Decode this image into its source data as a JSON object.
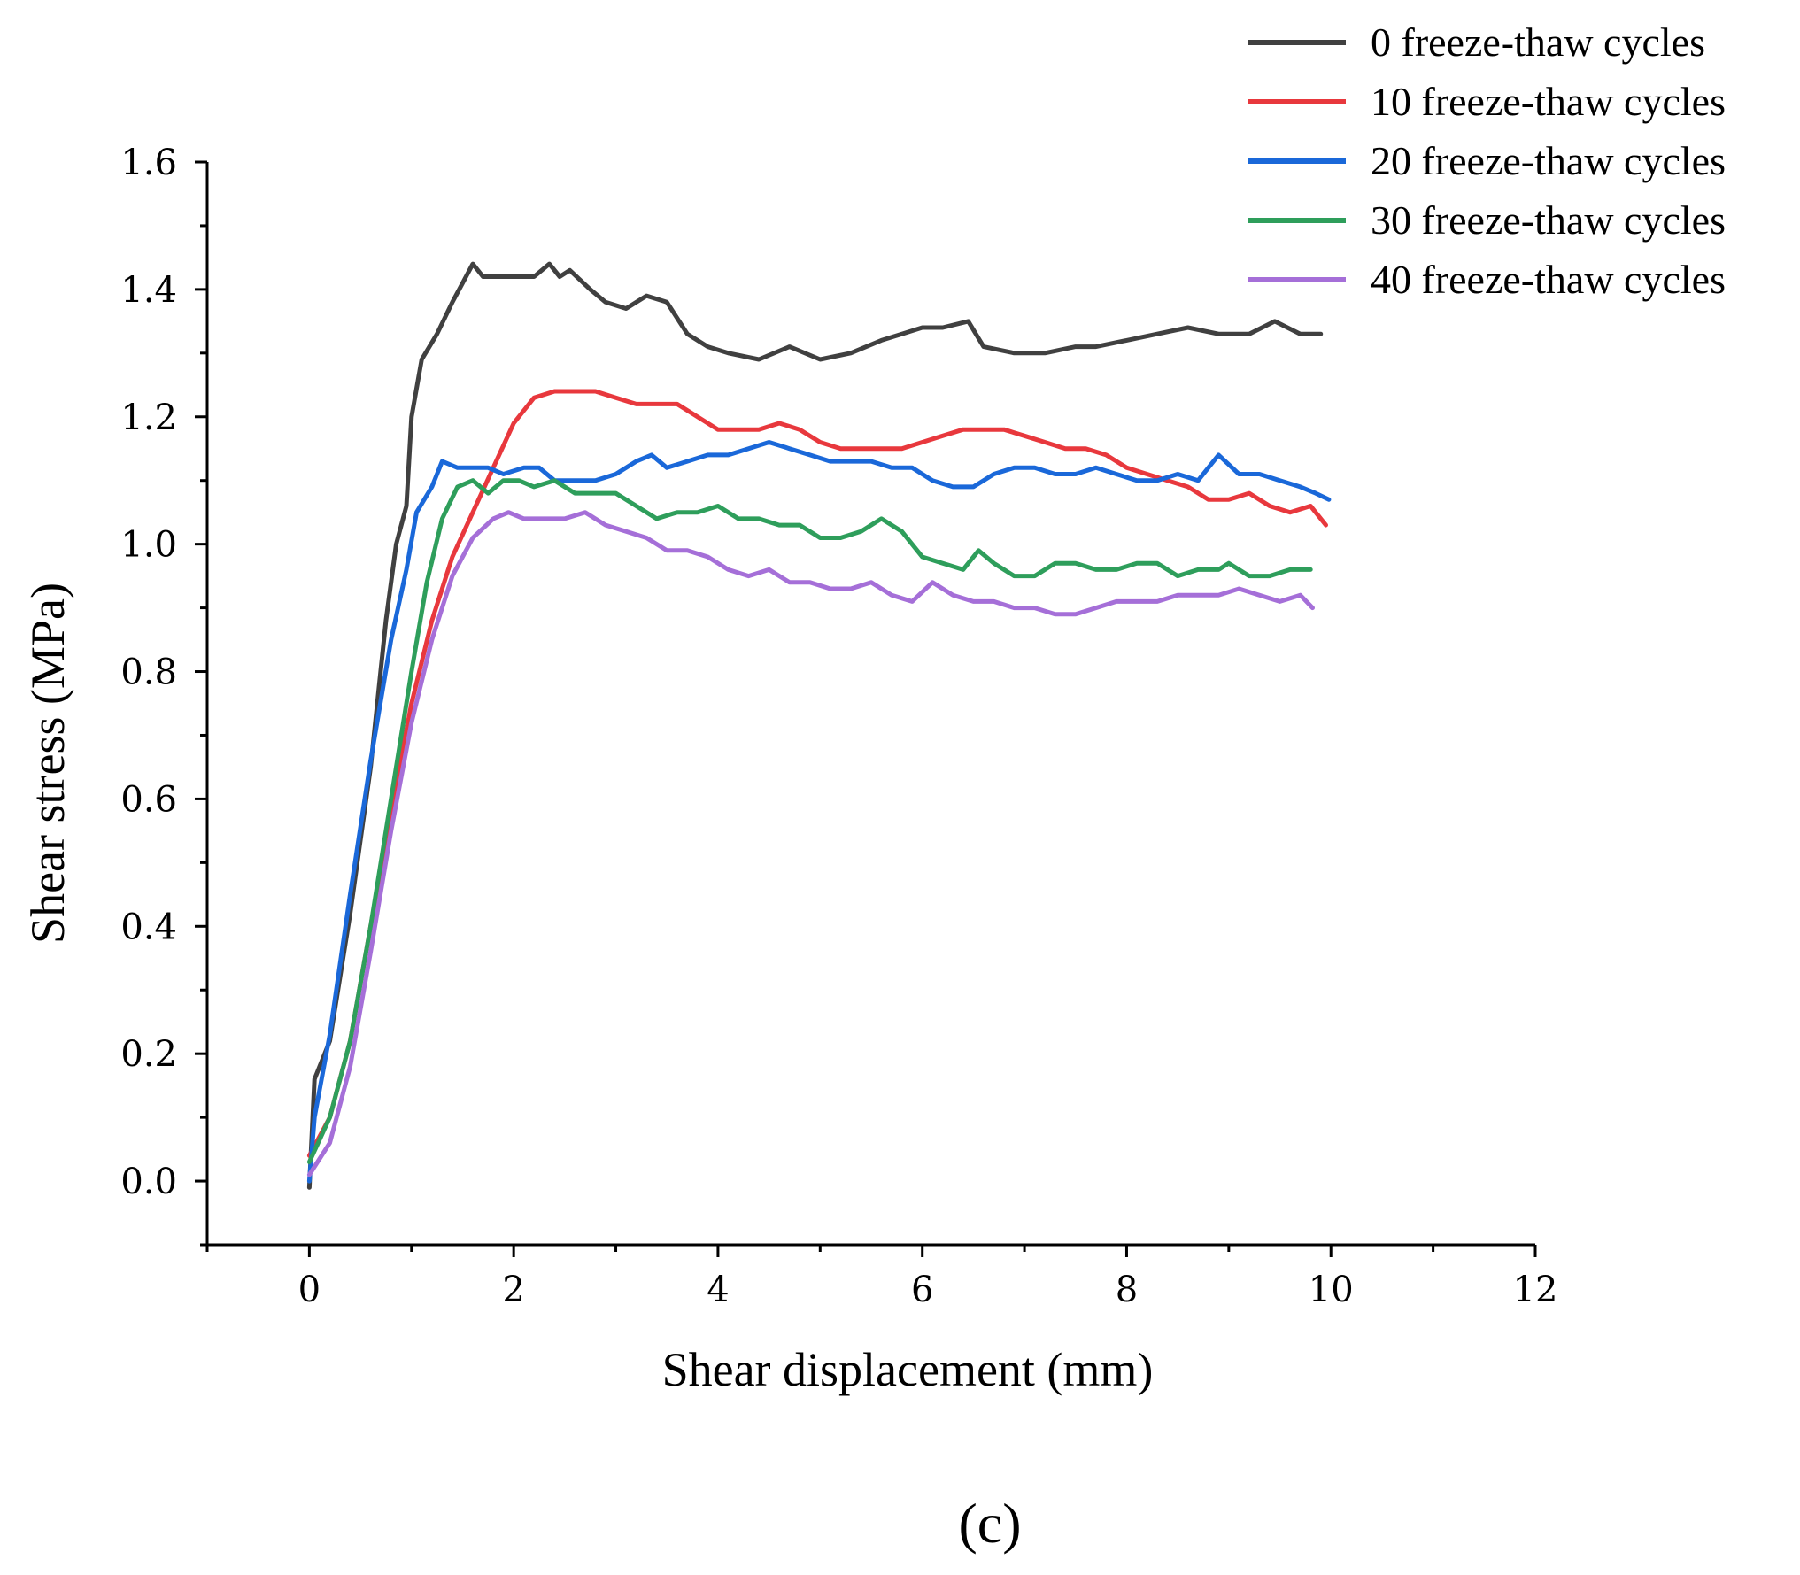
{
  "chart_data": {
    "type": "line",
    "title": "",
    "xlabel": "Shear displacement (mm)",
    "ylabel": "Shear stress (MPa)",
    "xlim": [
      -1,
      12
    ],
    "ylim": [
      -0.1,
      1.6
    ],
    "xticks": [
      0,
      2,
      4,
      6,
      8,
      10,
      12
    ],
    "xtick_labels": [
      "0",
      "2",
      "4",
      "6",
      "8",
      "10",
      "12"
    ],
    "yticks": [
      0.0,
      0.2,
      0.4,
      0.6,
      0.8,
      1.0,
      1.2,
      1.4,
      1.6
    ],
    "ytick_labels": [
      "0.0",
      "0.2",
      "0.4",
      "0.6",
      "0.8",
      "1.0",
      "1.2",
      "1.4",
      "1.6"
    ],
    "grid": false,
    "legend_position": "top-right",
    "panel_label": "(c)",
    "series": [
      {
        "name": "0 freeze-thaw cycles",
        "color": "#404040",
        "x": [
          0,
          0.05,
          0.2,
          0.4,
          0.6,
          0.75,
          0.85,
          0.95,
          1.0,
          1.1,
          1.25,
          1.4,
          1.5,
          1.6,
          1.7,
          1.85,
          2.0,
          2.2,
          2.35,
          2.45,
          2.55,
          2.75,
          2.9,
          3.1,
          3.3,
          3.5,
          3.7,
          3.9,
          4.1,
          4.4,
          4.7,
          5.0,
          5.3,
          5.6,
          5.8,
          6.0,
          6.2,
          6.45,
          6.6,
          6.9,
          7.2,
          7.5,
          7.7,
          8.0,
          8.3,
          8.6,
          8.9,
          9.2,
          9.45,
          9.7,
          9.9
        ],
        "values": [
          -0.01,
          0.16,
          0.22,
          0.42,
          0.65,
          0.88,
          1.0,
          1.06,
          1.2,
          1.29,
          1.33,
          1.38,
          1.41,
          1.44,
          1.42,
          1.42,
          1.42,
          1.42,
          1.44,
          1.42,
          1.43,
          1.4,
          1.38,
          1.37,
          1.39,
          1.38,
          1.33,
          1.31,
          1.3,
          1.29,
          1.31,
          1.29,
          1.3,
          1.32,
          1.33,
          1.34,
          1.34,
          1.35,
          1.31,
          1.3,
          1.3,
          1.31,
          1.31,
          1.32,
          1.33,
          1.34,
          1.33,
          1.33,
          1.35,
          1.33,
          1.33
        ]
      },
      {
        "name": "10 freeze-thaw cycles",
        "color": "#e8383d",
        "x": [
          0,
          0.2,
          0.4,
          0.6,
          0.8,
          1.0,
          1.2,
          1.4,
          1.6,
          1.8,
          2.0,
          2.2,
          2.4,
          2.6,
          2.8,
          3.0,
          3.2,
          3.4,
          3.6,
          3.8,
          4.0,
          4.2,
          4.4,
          4.6,
          4.8,
          5.0,
          5.2,
          5.4,
          5.6,
          5.8,
          6.0,
          6.2,
          6.4,
          6.6,
          6.8,
          7.0,
          7.2,
          7.4,
          7.6,
          7.8,
          8.0,
          8.2,
          8.4,
          8.6,
          8.8,
          9.0,
          9.2,
          9.4,
          9.6,
          9.8,
          9.95
        ],
        "values": [
          0.04,
          0.1,
          0.22,
          0.4,
          0.58,
          0.75,
          0.88,
          0.98,
          1.05,
          1.12,
          1.19,
          1.23,
          1.24,
          1.24,
          1.24,
          1.23,
          1.22,
          1.22,
          1.22,
          1.2,
          1.18,
          1.18,
          1.18,
          1.19,
          1.18,
          1.16,
          1.15,
          1.15,
          1.15,
          1.15,
          1.16,
          1.17,
          1.18,
          1.18,
          1.18,
          1.17,
          1.16,
          1.15,
          1.15,
          1.14,
          1.12,
          1.11,
          1.1,
          1.09,
          1.07,
          1.07,
          1.08,
          1.06,
          1.05,
          1.06,
          1.03
        ]
      },
      {
        "name": "20 freeze-thaw cycles",
        "color": "#1a68d9",
        "x": [
          0,
          0.05,
          0.2,
          0.4,
          0.6,
          0.8,
          0.95,
          1.05,
          1.2,
          1.3,
          1.45,
          1.6,
          1.75,
          1.9,
          2.1,
          2.25,
          2.4,
          2.6,
          2.8,
          3.0,
          3.2,
          3.35,
          3.5,
          3.7,
          3.9,
          4.1,
          4.3,
          4.5,
          4.7,
          4.9,
          5.1,
          5.3,
          5.5,
          5.7,
          5.9,
          6.1,
          6.3,
          6.5,
          6.7,
          6.9,
          7.1,
          7.3,
          7.5,
          7.7,
          7.9,
          8.1,
          8.3,
          8.5,
          8.7,
          8.9,
          9.1,
          9.3,
          9.5,
          9.7,
          9.85,
          9.98
        ],
        "values": [
          0.0,
          0.1,
          0.23,
          0.45,
          0.66,
          0.85,
          0.96,
          1.05,
          1.09,
          1.13,
          1.12,
          1.12,
          1.12,
          1.11,
          1.12,
          1.12,
          1.1,
          1.1,
          1.1,
          1.11,
          1.13,
          1.14,
          1.12,
          1.13,
          1.14,
          1.14,
          1.15,
          1.16,
          1.15,
          1.14,
          1.13,
          1.13,
          1.13,
          1.12,
          1.12,
          1.1,
          1.09,
          1.09,
          1.11,
          1.12,
          1.12,
          1.11,
          1.11,
          1.12,
          1.11,
          1.1,
          1.1,
          1.11,
          1.1,
          1.14,
          1.11,
          1.11,
          1.1,
          1.09,
          1.08,
          1.07
        ]
      },
      {
        "name": "30 freeze-thaw cycles",
        "color": "#2e9e5b",
        "x": [
          0,
          0.2,
          0.4,
          0.6,
          0.8,
          1.0,
          1.15,
          1.3,
          1.45,
          1.6,
          1.75,
          1.9,
          2.05,
          2.2,
          2.4,
          2.6,
          2.8,
          3.0,
          3.2,
          3.4,
          3.6,
          3.8,
          4.0,
          4.2,
          4.4,
          4.6,
          4.8,
          5.0,
          5.2,
          5.4,
          5.6,
          5.8,
          6.0,
          6.2,
          6.4,
          6.55,
          6.7,
          6.9,
          7.1,
          7.3,
          7.5,
          7.7,
          7.9,
          8.1,
          8.3,
          8.5,
          8.7,
          8.9,
          9.0,
          9.2,
          9.4,
          9.6,
          9.8
        ],
        "values": [
          0.03,
          0.1,
          0.22,
          0.4,
          0.6,
          0.8,
          0.94,
          1.04,
          1.09,
          1.1,
          1.08,
          1.1,
          1.1,
          1.09,
          1.1,
          1.08,
          1.08,
          1.08,
          1.06,
          1.04,
          1.05,
          1.05,
          1.06,
          1.04,
          1.04,
          1.03,
          1.03,
          1.01,
          1.01,
          1.02,
          1.04,
          1.02,
          0.98,
          0.97,
          0.96,
          0.99,
          0.97,
          0.95,
          0.95,
          0.97,
          0.97,
          0.96,
          0.96,
          0.97,
          0.97,
          0.95,
          0.96,
          0.96,
          0.97,
          0.95,
          0.95,
          0.96,
          0.96
        ]
      },
      {
        "name": "40 freeze-thaw cycles",
        "color": "#a56fd8",
        "x": [
          0,
          0.2,
          0.4,
          0.6,
          0.8,
          1.0,
          1.2,
          1.4,
          1.6,
          1.8,
          1.95,
          2.1,
          2.3,
          2.5,
          2.7,
          2.9,
          3.1,
          3.3,
          3.5,
          3.7,
          3.9,
          4.1,
          4.3,
          4.5,
          4.7,
          4.9,
          5.1,
          5.3,
          5.5,
          5.7,
          5.9,
          6.1,
          6.3,
          6.5,
          6.7,
          6.9,
          7.1,
          7.3,
          7.5,
          7.7,
          7.9,
          8.1,
          8.3,
          8.5,
          8.7,
          8.9,
          9.1,
          9.3,
          9.5,
          9.7,
          9.82
        ],
        "values": [
          0.01,
          0.06,
          0.18,
          0.36,
          0.55,
          0.72,
          0.85,
          0.95,
          1.01,
          1.04,
          1.05,
          1.04,
          1.04,
          1.04,
          1.05,
          1.03,
          1.02,
          1.01,
          0.99,
          0.99,
          0.98,
          0.96,
          0.95,
          0.96,
          0.94,
          0.94,
          0.93,
          0.93,
          0.94,
          0.92,
          0.91,
          0.94,
          0.92,
          0.91,
          0.91,
          0.9,
          0.9,
          0.89,
          0.89,
          0.9,
          0.91,
          0.91,
          0.91,
          0.92,
          0.92,
          0.92,
          0.93,
          0.92,
          0.91,
          0.92,
          0.9
        ]
      }
    ]
  }
}
